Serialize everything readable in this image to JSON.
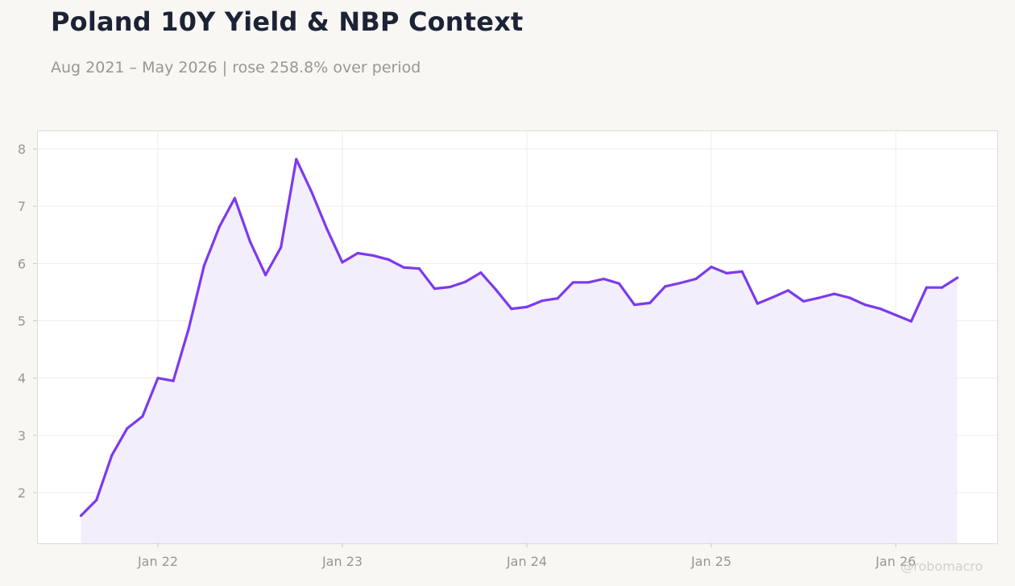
{
  "header": {
    "title": "Poland 10Y Yield & NBP Context",
    "subtitle": "Aug 2021 – May 2026 | rose 258.8% over period"
  },
  "watermark": "@robomacro",
  "colors": {
    "line": "#7c3aed",
    "fill": "#f1ecfc",
    "plot_background": "#ffffff",
    "page_background": "#f8f7f4",
    "title": "#1c2336",
    "muted_text": "#9a9690"
  },
  "chart_data": {
    "type": "area",
    "title": "Poland 10Y Yield & NBP Context",
    "subtitle": "Aug 2021 – May 2026 | rose 258.8% over period",
    "xlabel": "",
    "ylabel": "",
    "ylim": [
      1.1,
      8.3
    ],
    "grid": true,
    "x_tick_labels": [
      "Jan 22",
      "Jan 23",
      "Jan 24",
      "Jan 25",
      "Jan 26"
    ],
    "x_ticks": [
      "2022-01",
      "2023-01",
      "2024-01",
      "2025-01",
      "2026-01"
    ],
    "y_ticks": [
      2,
      3,
      4,
      5,
      6,
      7,
      8
    ],
    "x": [
      "2021-08",
      "2021-09",
      "2021-10",
      "2021-11",
      "2021-12",
      "2022-01",
      "2022-02",
      "2022-03",
      "2022-04",
      "2022-05",
      "2022-06",
      "2022-07",
      "2022-08",
      "2022-09",
      "2022-10",
      "2022-11",
      "2022-12",
      "2023-01",
      "2023-02",
      "2023-03",
      "2023-04",
      "2023-05",
      "2023-06",
      "2023-07",
      "2023-08",
      "2023-09",
      "2023-10",
      "2023-11",
      "2023-12",
      "2024-01",
      "2024-02",
      "2024-03",
      "2024-04",
      "2024-05",
      "2024-06",
      "2024-07",
      "2024-08",
      "2024-09",
      "2024-10",
      "2024-11",
      "2024-12",
      "2025-01",
      "2025-02",
      "2025-03",
      "2025-04",
      "2025-05",
      "2025-06",
      "2025-07",
      "2025-08",
      "2025-09",
      "2025-10",
      "2025-11",
      "2025-12",
      "2026-01",
      "2026-02",
      "2026-03",
      "2026-04",
      "2026-05"
    ],
    "series": [
      {
        "values": [
          1.6,
          1.87,
          2.65,
          3.12,
          3.33,
          4.0,
          3.95,
          4.86,
          5.96,
          6.64,
          7.14,
          6.38,
          5.8,
          6.28,
          7.82,
          7.25,
          6.6,
          6.02,
          6.18,
          6.14,
          6.07,
          5.93,
          5.91,
          5.56,
          5.59,
          5.68,
          5.84,
          5.54,
          5.21,
          5.24,
          5.35,
          5.39,
          5.67,
          5.67,
          5.73,
          5.65,
          5.28,
          5.31,
          5.6,
          5.66,
          5.73,
          5.94,
          5.83,
          5.86,
          5.3,
          5.41,
          5.53,
          5.34,
          5.4,
          5.47,
          5.4,
          5.28,
          5.21,
          5.1,
          4.99,
          5.58,
          5.58,
          5.75
        ]
      }
    ]
  }
}
